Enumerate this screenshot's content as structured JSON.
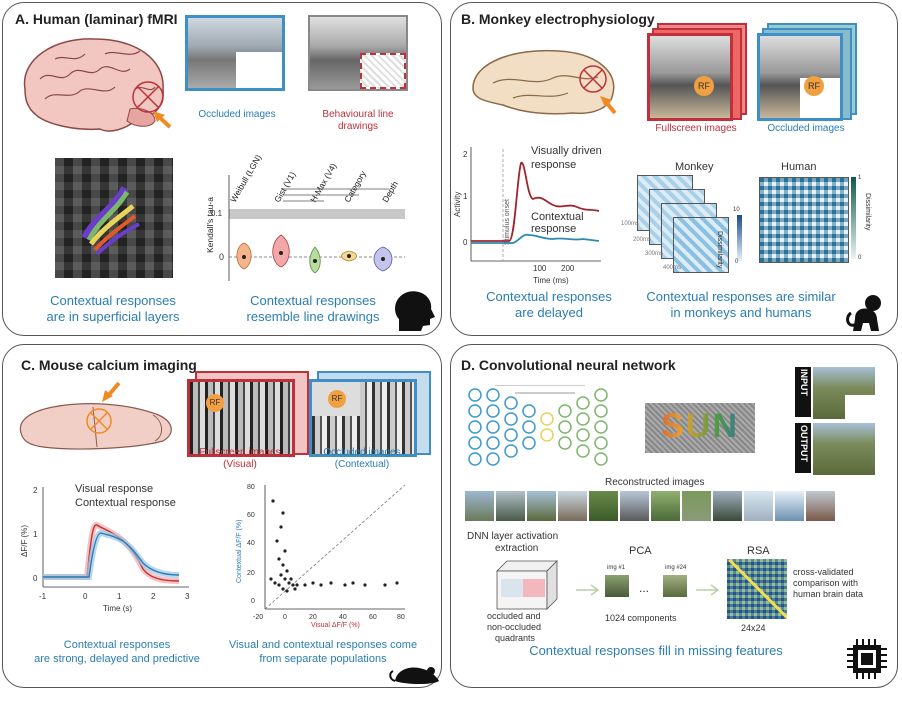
{
  "panelA": {
    "title": "A. Human (laminar) fMRI",
    "occluded_label": "Occluded images",
    "behav_label_1": "Behavioural line",
    "behav_label_2": "drawings",
    "ylabel": "Kendall's tau-a",
    "categories": [
      "Weibull (LGN)",
      "Gist (V1)",
      "H-Max (V4)",
      "Category",
      "Depth"
    ],
    "ytick_0": "0",
    "ytick_1": "0.1",
    "cap1_l1": "Contextual responses",
    "cap1_l2": "are in superficial layers",
    "cap2_l1": "Contextual responses",
    "cap2_l2": "resemble line drawings"
  },
  "panelB": {
    "title": "B. Monkey electrophysiology",
    "fullscreen_label": "Fullscreen images",
    "occluded_label": "Occluded images",
    "rf": "RF",
    "visual_l1": "Visually driven",
    "visual_l2": "response",
    "contextual_l1": "Contextual",
    "contextual_l2": "response",
    "stim_onset": "Stimulus onset",
    "ylabel": "Activity",
    "xlabel": "Time (ms)",
    "xtick_100": "100",
    "xtick_200": "200",
    "ytick_0": "0",
    "ytick_1": "1",
    "ytick_2": "2",
    "monkey": "Monkey",
    "human": "Human",
    "t100": "100ms",
    "t200": "200ms",
    "t300": "300ms",
    "t400": "400ms",
    "dis_label": "Dissimilarity",
    "dis_10": "10",
    "dis_0": "0",
    "dis_1": "1",
    "dis_h0": "0",
    "cap1_l1": "Contextual responses",
    "cap1_l2": "are delayed",
    "cap2_l1": "Contextual responses are similar",
    "cap2_l2": "in monkeys and humans"
  },
  "panelC": {
    "title": "C. Mouse calcium imaging",
    "rf": "RF",
    "full_l1": "Fullscreen images",
    "full_l2": "(Visual)",
    "occ_l1": "Occluded images",
    "occ_l2": "(Contextual)",
    "visual_resp": "Visual response",
    "contextual_resp": "Contextual response",
    "ylabel": "ΔF/F (%)",
    "xlabel": "Time (s)",
    "xticks": [
      "-1",
      "0",
      "1",
      "2",
      "3"
    ],
    "yticks": [
      "0",
      "1",
      "2"
    ],
    "sc_ylabel": "Contextual  ΔF/F (%)",
    "sc_xlabel": "Visual  ΔF/F (%)",
    "sc_xticks": [
      "-20",
      "0",
      "20",
      "40",
      "60",
      "80"
    ],
    "sc_yticks": [
      "0",
      "20",
      "40",
      "60",
      "80"
    ],
    "cap1_l1": "Contextual responses",
    "cap1_l2": "are strong, delayed and predictive",
    "cap2_l1": "Visual and contextual responses come",
    "cap2_l2": "from separate populations"
  },
  "panelD": {
    "title": "D.  Convolutional neural network",
    "sun": "SUN",
    "input": "INPUT",
    "output": "OUTPUT",
    "reconstructed": "Reconstructed images",
    "dnn_l1": "DNN layer activation",
    "dnn_l2": "extraction",
    "quad_l1": "occluded and",
    "quad_l2": "non-occluded",
    "quad_l3": "quadrants",
    "pca": "PCA",
    "img1": "img #1",
    "img24": "img #24",
    "dots": "...",
    "components": "1024 components",
    "rsa": "RSA",
    "rsa_size": "24x24",
    "cv_l1": "cross-validated",
    "cv_l2": "comparison with",
    "cv_l3": "human brain data",
    "cap": "Contextual responses fill in missing features"
  },
  "colors": {
    "blue": "#2a7db3",
    "red": "#c0303a",
    "orange": "#f08a24",
    "brain_pink": "#f2c7c2",
    "green": "#7cb86a",
    "yellow": "#e8d45a"
  }
}
